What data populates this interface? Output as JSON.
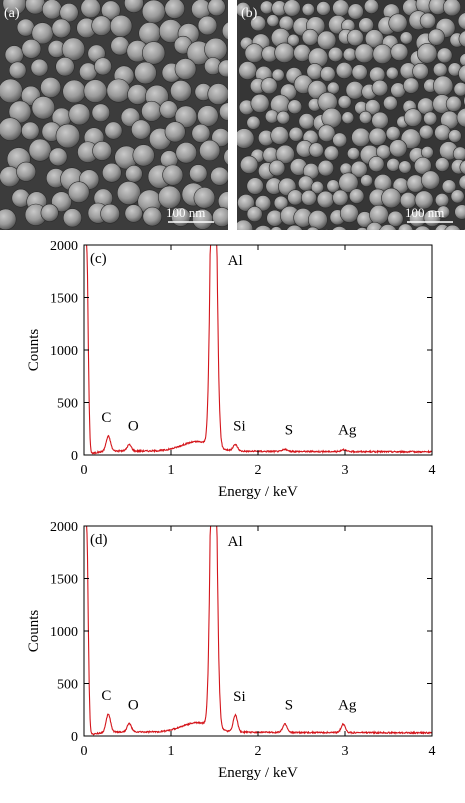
{
  "figure": {
    "sem_panels": [
      {
        "label": "(a)",
        "scale_bar": "100 nm"
      },
      {
        "label": "(b)",
        "scale_bar": "100 nm"
      }
    ]
  },
  "chart_data": [
    {
      "type": "line",
      "panel_label": "(c)",
      "xlabel": "Energy / keV",
      "ylabel": "Counts",
      "xlim": [
        0,
        4
      ],
      "ylim": [
        0,
        2000
      ],
      "xticks": [
        0,
        1,
        2,
        3,
        4
      ],
      "yticks": [
        0,
        500,
        1000,
        1500,
        2000
      ],
      "line_color": "#d4151b",
      "baseline": 40,
      "peaks": [
        {
          "label": "C",
          "x": 0.28,
          "y": 180
        },
        {
          "label": "O",
          "x": 0.52,
          "y": 100
        },
        {
          "label": "Al",
          "x": 1.49,
          "y": 2000
        },
        {
          "label": "Si",
          "x": 1.74,
          "y": 100
        },
        {
          "label": "S",
          "x": 2.31,
          "y": 60
        },
        {
          "label": "Ag",
          "x": 2.98,
          "y": 60
        }
      ]
    },
    {
      "type": "line",
      "panel_label": "(d)",
      "xlabel": "Energy / keV",
      "ylabel": "Counts",
      "xlim": [
        0,
        4
      ],
      "ylim": [
        0,
        2000
      ],
      "xticks": [
        0,
        1,
        2,
        3,
        4
      ],
      "yticks": [
        0,
        500,
        1000,
        1500,
        2000
      ],
      "line_color": "#d4151b",
      "baseline": 40,
      "peaks": [
        {
          "label": "C",
          "x": 0.28,
          "y": 210
        },
        {
          "label": "O",
          "x": 0.52,
          "y": 120
        },
        {
          "label": "Al",
          "x": 1.49,
          "y": 2000
        },
        {
          "label": "Si",
          "x": 1.74,
          "y": 200
        },
        {
          "label": "S",
          "x": 2.31,
          "y": 120
        },
        {
          "label": "Ag",
          "x": 2.98,
          "y": 120
        }
      ]
    }
  ]
}
